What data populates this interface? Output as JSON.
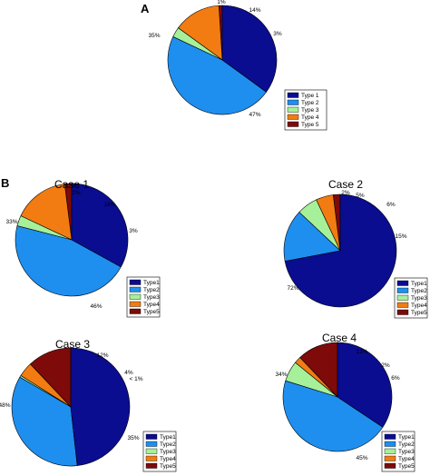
{
  "panel_labels": {
    "a": "A",
    "b": "B"
  },
  "colors": {
    "Type 1": "#0a0d8f",
    "Type 2": "#1e8fef",
    "Type 3": "#a6f09a",
    "Type 4": "#f27c12",
    "Type 5": "#7e0a0a"
  },
  "chart_data": [
    {
      "type": "pie",
      "title": "",
      "legend_position": "bottom-right",
      "categories": [
        "Type 1",
        "Type 2",
        "Type 3",
        "Type 4",
        "Type 5"
      ],
      "values": [
        35,
        47,
        3,
        14,
        1
      ],
      "labels": [
        "35%",
        "47%",
        "3%",
        "14%",
        "1%"
      ]
    },
    {
      "type": "pie",
      "title": "Case 1",
      "legend_position": "bottom-right",
      "categories": [
        "Type1",
        "Type2",
        "Type3",
        "Type4",
        "Type5"
      ],
      "values": [
        33,
        46,
        3,
        16,
        2
      ],
      "labels": [
        "33%",
        "46%",
        "3%",
        "16%",
        "2%"
      ]
    },
    {
      "type": "pie",
      "title": "Case 2",
      "legend_position": "bottom-right",
      "categories": [
        "Type1",
        "Type2",
        "Type3",
        "Type4",
        "Type5"
      ],
      "values": [
        72,
        15,
        6,
        5,
        2
      ],
      "labels": [
        "72%",
        "15%",
        "6%",
        "5%",
        "2%"
      ]
    },
    {
      "type": "pie",
      "title": "Case 3",
      "legend_position": "bottom-right",
      "categories": [
        "Type1",
        "Type2",
        "Type3",
        "Type4",
        "Type5"
      ],
      "values": [
        48,
        35,
        0.5,
        4,
        12
      ],
      "labels": [
        "48%",
        "35%",
        "< 1%",
        "4%",
        "12%"
      ]
    },
    {
      "type": "pie",
      "title": "Case 4",
      "legend_position": "bottom-right",
      "categories": [
        "Type1",
        "Type2",
        "Type3",
        "Type4",
        "Type5"
      ],
      "values": [
        34,
        45,
        6,
        2,
        12
      ],
      "labels": [
        "34%",
        "45%",
        "6%",
        "2%",
        "12%"
      ]
    }
  ]
}
